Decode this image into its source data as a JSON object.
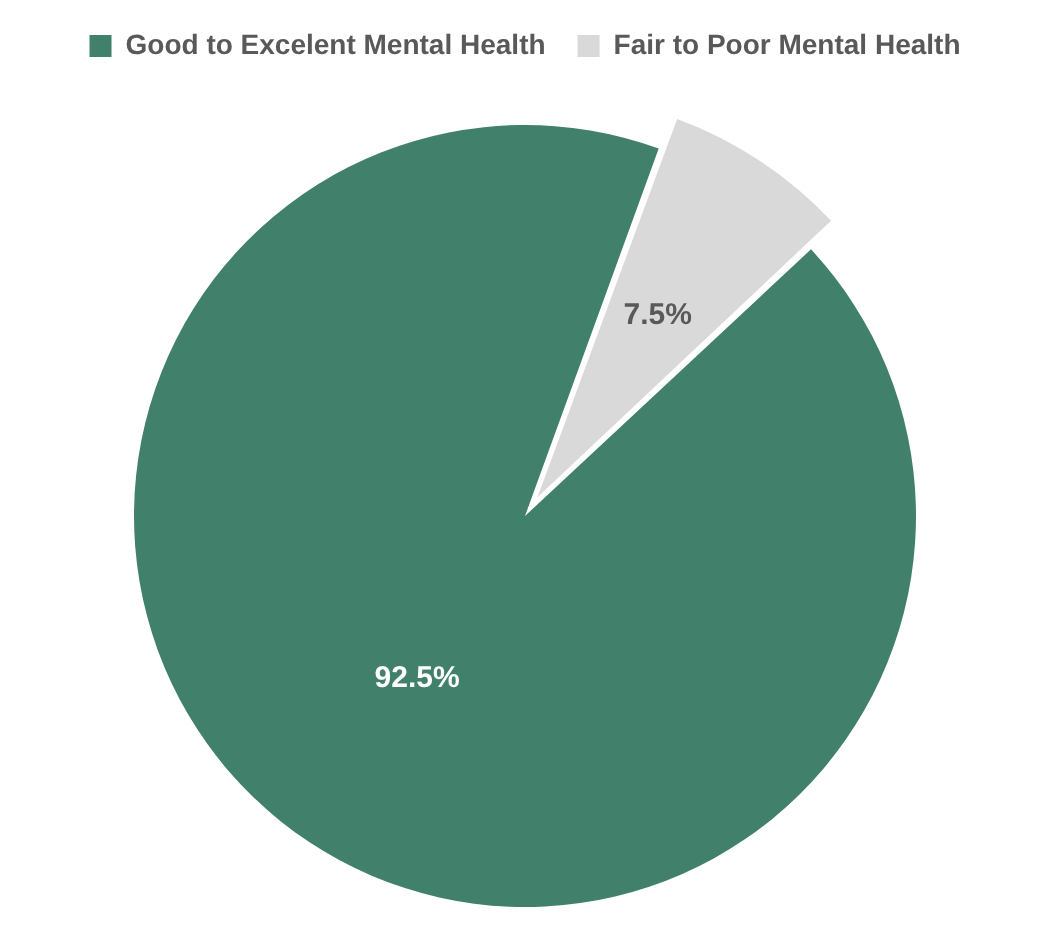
{
  "chart_data": {
    "type": "pie",
    "categories": [
      "Good to Excelent Mental Health",
      "Fair to Poor Mental Health"
    ],
    "values": [
      92.5,
      7.5
    ],
    "colors": [
      "#41806a",
      "#d9d9d9"
    ],
    "value_labels": [
      "92.5%",
      "7.5%"
    ],
    "legend": "top"
  }
}
